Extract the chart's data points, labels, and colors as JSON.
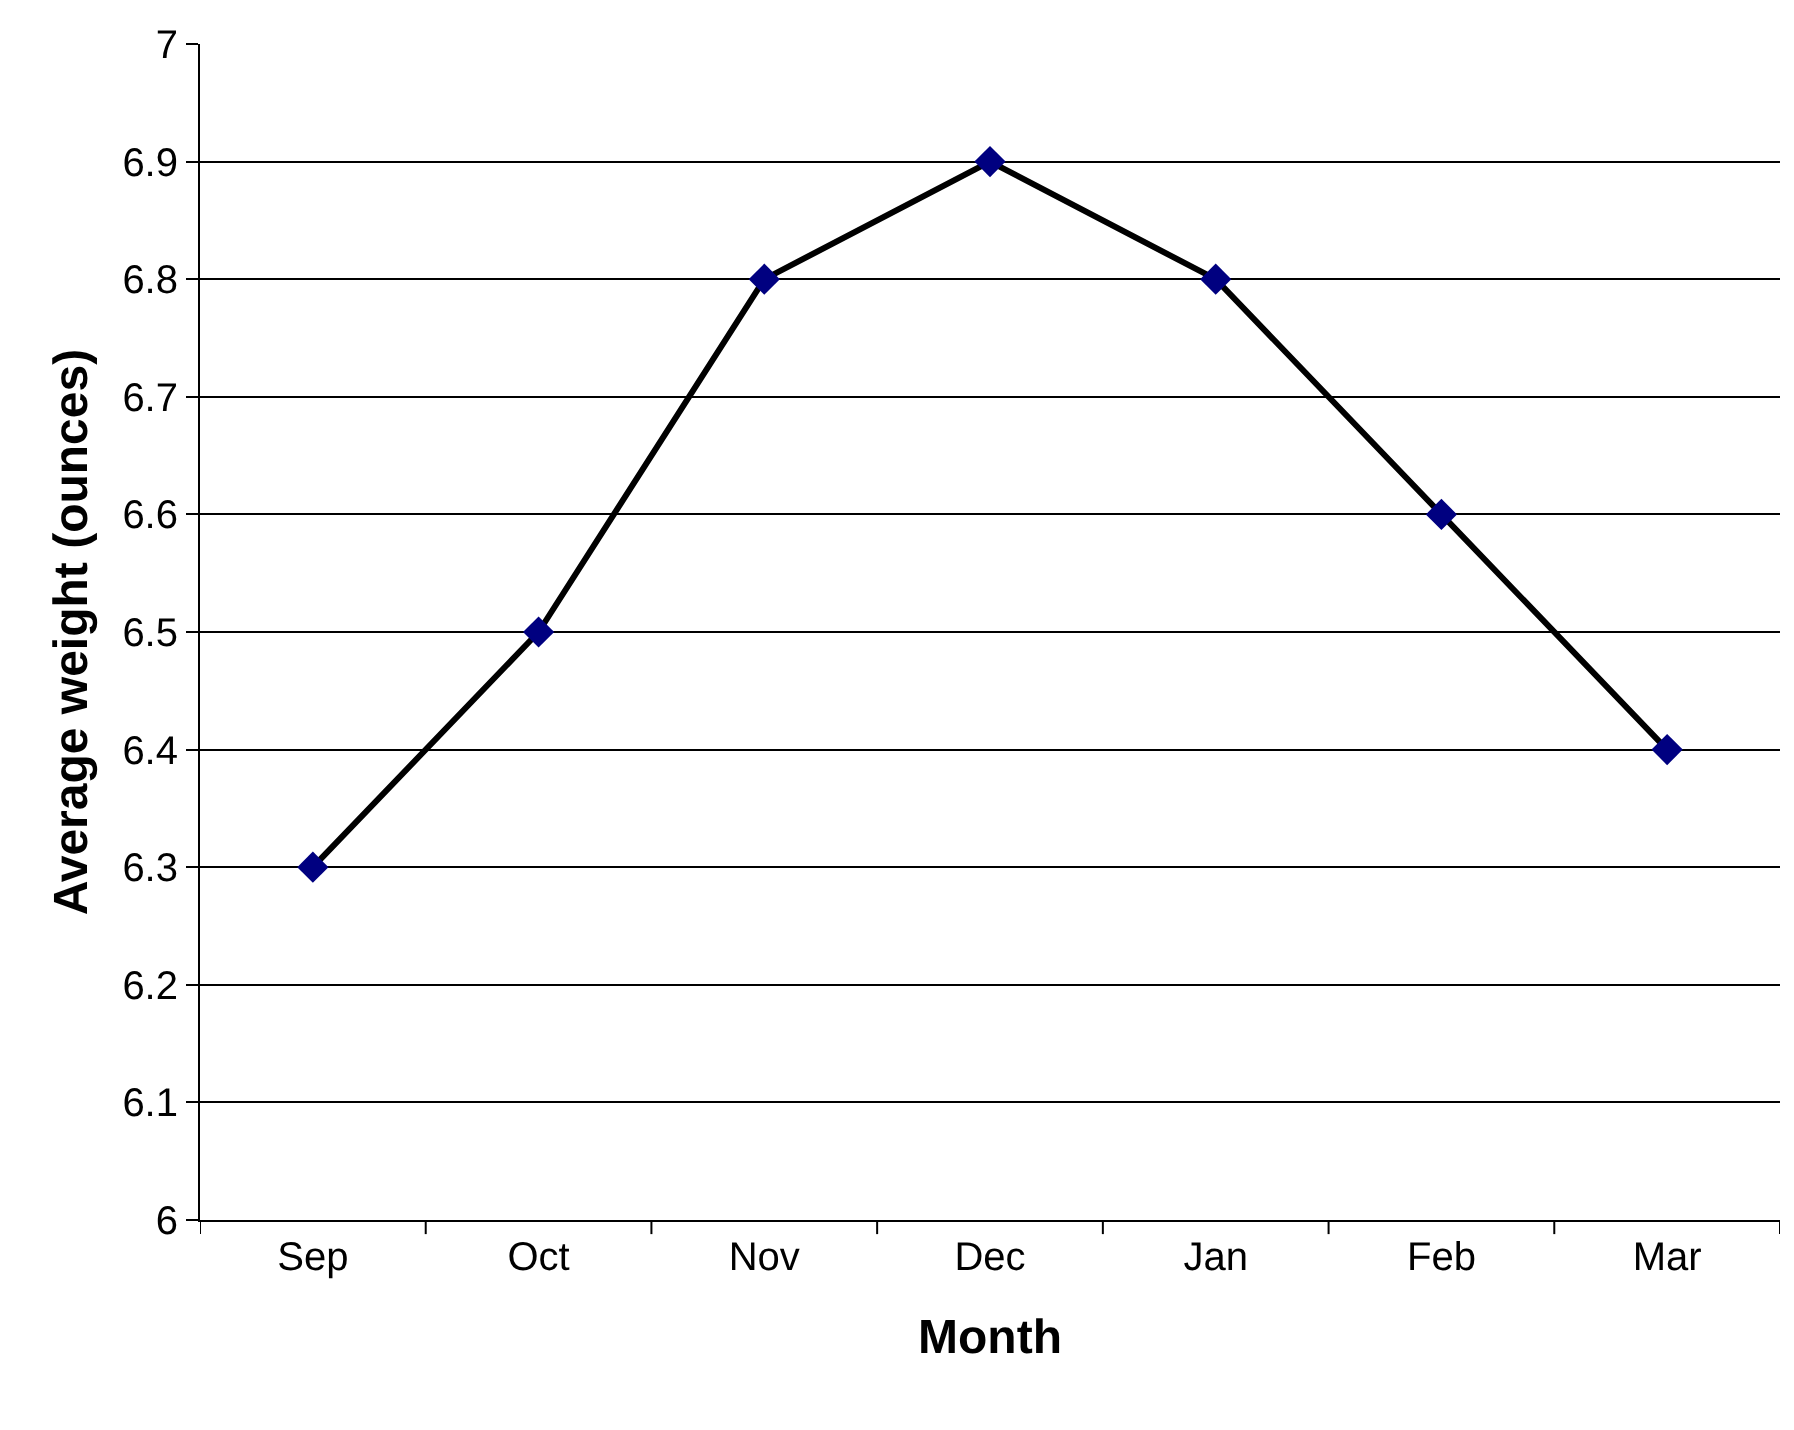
{
  "chart_data": {
    "type": "line",
    "xlabel": "Month",
    "ylabel": "Average weight (ounces)",
    "categories": [
      "Sep",
      "Oct",
      "Nov",
      "Dec",
      "Jan",
      "Feb",
      "Mar"
    ],
    "series": [
      {
        "color": "#000000",
        "colors": [
          "#000080",
          "#000080",
          "#000080",
          "#000080",
          "#000080",
          "#000080",
          "#000080"
        ],
        "values": [
          6.3,
          6.5,
          6.8,
          6.9,
          6.8,
          6.6,
          6.4
        ]
      }
    ],
    "ylim": [
      6,
      7
    ],
    "yticks": [
      6,
      6.1,
      6.2,
      6.3,
      6.4,
      6.5,
      6.6,
      6.7,
      6.8,
      6.9,
      7
    ],
    "grid": "y",
    "marker": "diamond",
    "line_style": "solid"
  }
}
